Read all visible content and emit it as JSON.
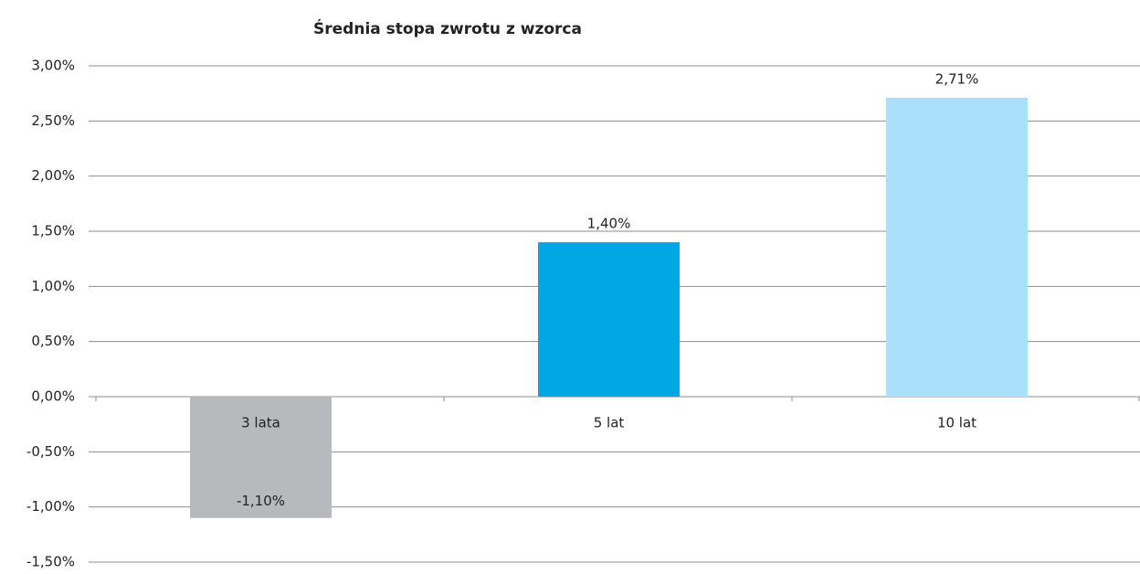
{
  "chart_data": {
    "type": "bar",
    "title": "Średnia stopa zwrotu z wzorca",
    "categories": [
      "3 lata",
      "5 lat",
      "10 lat"
    ],
    "values": [
      -1.1,
      1.4,
      2.71
    ],
    "value_labels": [
      "-1,10%",
      "1,40%",
      "2,71%"
    ],
    "colors": [
      "#b8b9bd",
      "#00a7e3",
      "#a9e1fb"
    ],
    "ylim": [
      -1.5,
      3
    ],
    "yticks": [
      {
        "value": -1.5,
        "label": "-1,50%"
      },
      {
        "value": -1,
        "label": "-1,00%"
      },
      {
        "value": -0.5,
        "label": "-0,50%"
      },
      {
        "value": 0,
        "label": "0,00%"
      },
      {
        "value": 0.5,
        "label": "0,50%"
      },
      {
        "value": 1,
        "label": "1,00%"
      },
      {
        "value": 1.5,
        "label": "1,50%"
      },
      {
        "value": 2,
        "label": "2,00%"
      },
      {
        "value": 2.5,
        "label": "2,50%"
      },
      {
        "value": 3,
        "label": "3,00%"
      }
    ],
    "grid": true
  }
}
